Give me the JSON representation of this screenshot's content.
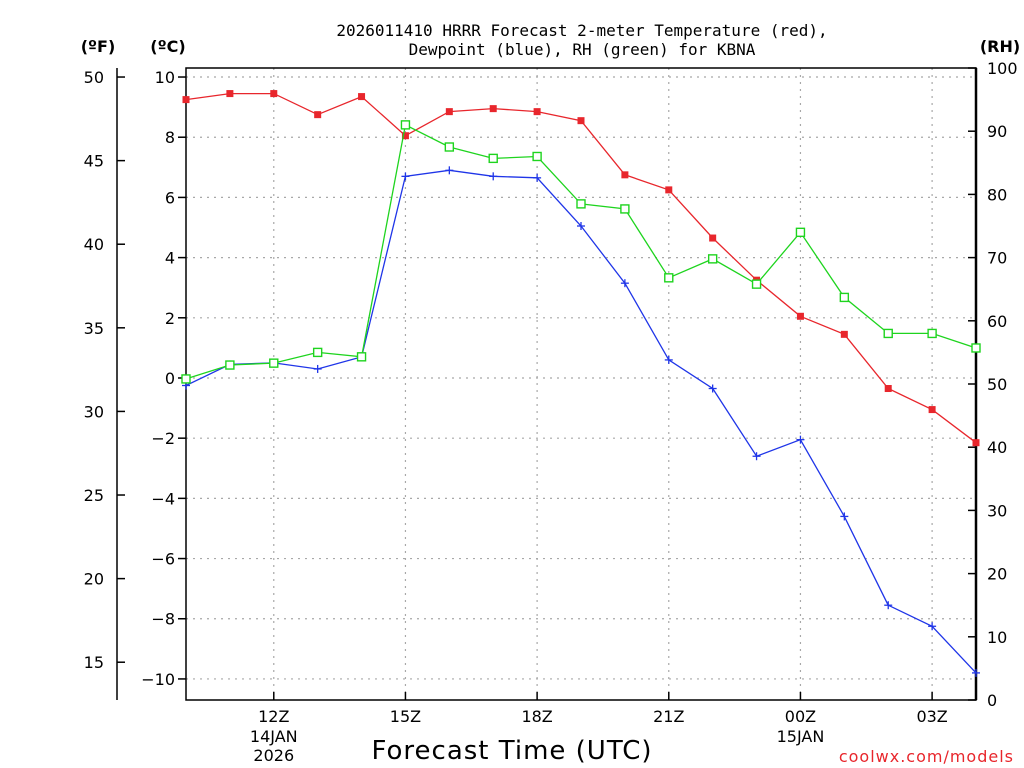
{
  "colors": {
    "temperature": "#e8262c",
    "dewpoint": "#1f35e8",
    "rh": "#1ed41e",
    "credit": "#e8262c",
    "grid": "#a8a8a8"
  },
  "chart_data": {
    "type": "line",
    "title_line1": "2026011410 HRRR Forecast 2-meter Temperature (red),",
    "title_line2": "Dewpoint (blue), RH (green) for KBNA",
    "xlabel": "Forecast Time (UTC)",
    "unit_f": "(ºF)",
    "unit_c": "(ºC)",
    "unit_rh": "(RH)",
    "x_hours": [
      10,
      11,
      12,
      13,
      14,
      15,
      16,
      17,
      18,
      19,
      20,
      21,
      22,
      23,
      24,
      25,
      26,
      27,
      28
    ],
    "xlim": [
      10,
      28
    ],
    "x_ticks": [
      {
        "hour": 12,
        "label": "12Z",
        "date": "14JAN",
        "year": "2026"
      },
      {
        "hour": 15,
        "label": "15Z"
      },
      {
        "hour": 18,
        "label": "18Z"
      },
      {
        "hour": 21,
        "label": "21Z"
      },
      {
        "hour": 24,
        "label": "00Z",
        "date": "15JAN"
      },
      {
        "hour": 27,
        "label": "03Z"
      }
    ],
    "y_celsius": {
      "range": [
        -10.7,
        10.3
      ],
      "ticks": [
        10,
        8,
        6,
        4,
        2,
        0,
        -2,
        -4,
        -6,
        -8,
        -10
      ],
      "labels": [
        "10",
        "8",
        "6",
        "4",
        "2",
        "0",
        "−2",
        "−4",
        "−6",
        "−8",
        "−10"
      ]
    },
    "y_fahrenheit": {
      "ticks": [
        50,
        45,
        40,
        35,
        30,
        25,
        20,
        15
      ],
      "labels": [
        "50",
        "45",
        "40",
        "35",
        "30",
        "25",
        "20",
        "15"
      ]
    },
    "y_rh": {
      "range": [
        0,
        100
      ],
      "ticks": [
        100,
        90,
        80,
        70,
        60,
        50,
        40,
        30,
        20,
        10,
        0
      ],
      "labels": [
        "100",
        "90",
        "80",
        "70",
        "60",
        "50",
        "40",
        "30",
        "20",
        "10",
        "0"
      ]
    },
    "series": [
      {
        "name": "Temperature",
        "axis": "celsius",
        "marker": "filled-square",
        "values": [
          9.25,
          9.45,
          9.45,
          8.75,
          9.35,
          8.05,
          8.85,
          8.95,
          8.85,
          8.55,
          6.75,
          6.25,
          4.65,
          3.25,
          2.05,
          1.45,
          -0.35,
          -1.05,
          -2.15
        ]
      },
      {
        "name": "Dewpoint",
        "axis": "celsius",
        "marker": "plus",
        "values": [
          -0.25,
          0.45,
          0.5,
          0.3,
          0.7,
          6.7,
          6.9,
          6.7,
          6.65,
          5.05,
          3.15,
          0.6,
          -0.35,
          -2.6,
          -2.05,
          -4.6,
          -7.55,
          -8.25,
          -9.8
        ]
      },
      {
        "name": "RH",
        "axis": "rh",
        "marker": "open-square",
        "values": [
          50.8,
          53.0,
          53.3,
          55.0,
          54.3,
          91.0,
          87.5,
          85.7,
          86.0,
          78.5,
          77.7,
          66.8,
          69.8,
          65.8,
          74.0,
          63.7,
          58.0,
          58.0,
          55.7
        ]
      }
    ]
  },
  "credit": "coolwx.com/models"
}
